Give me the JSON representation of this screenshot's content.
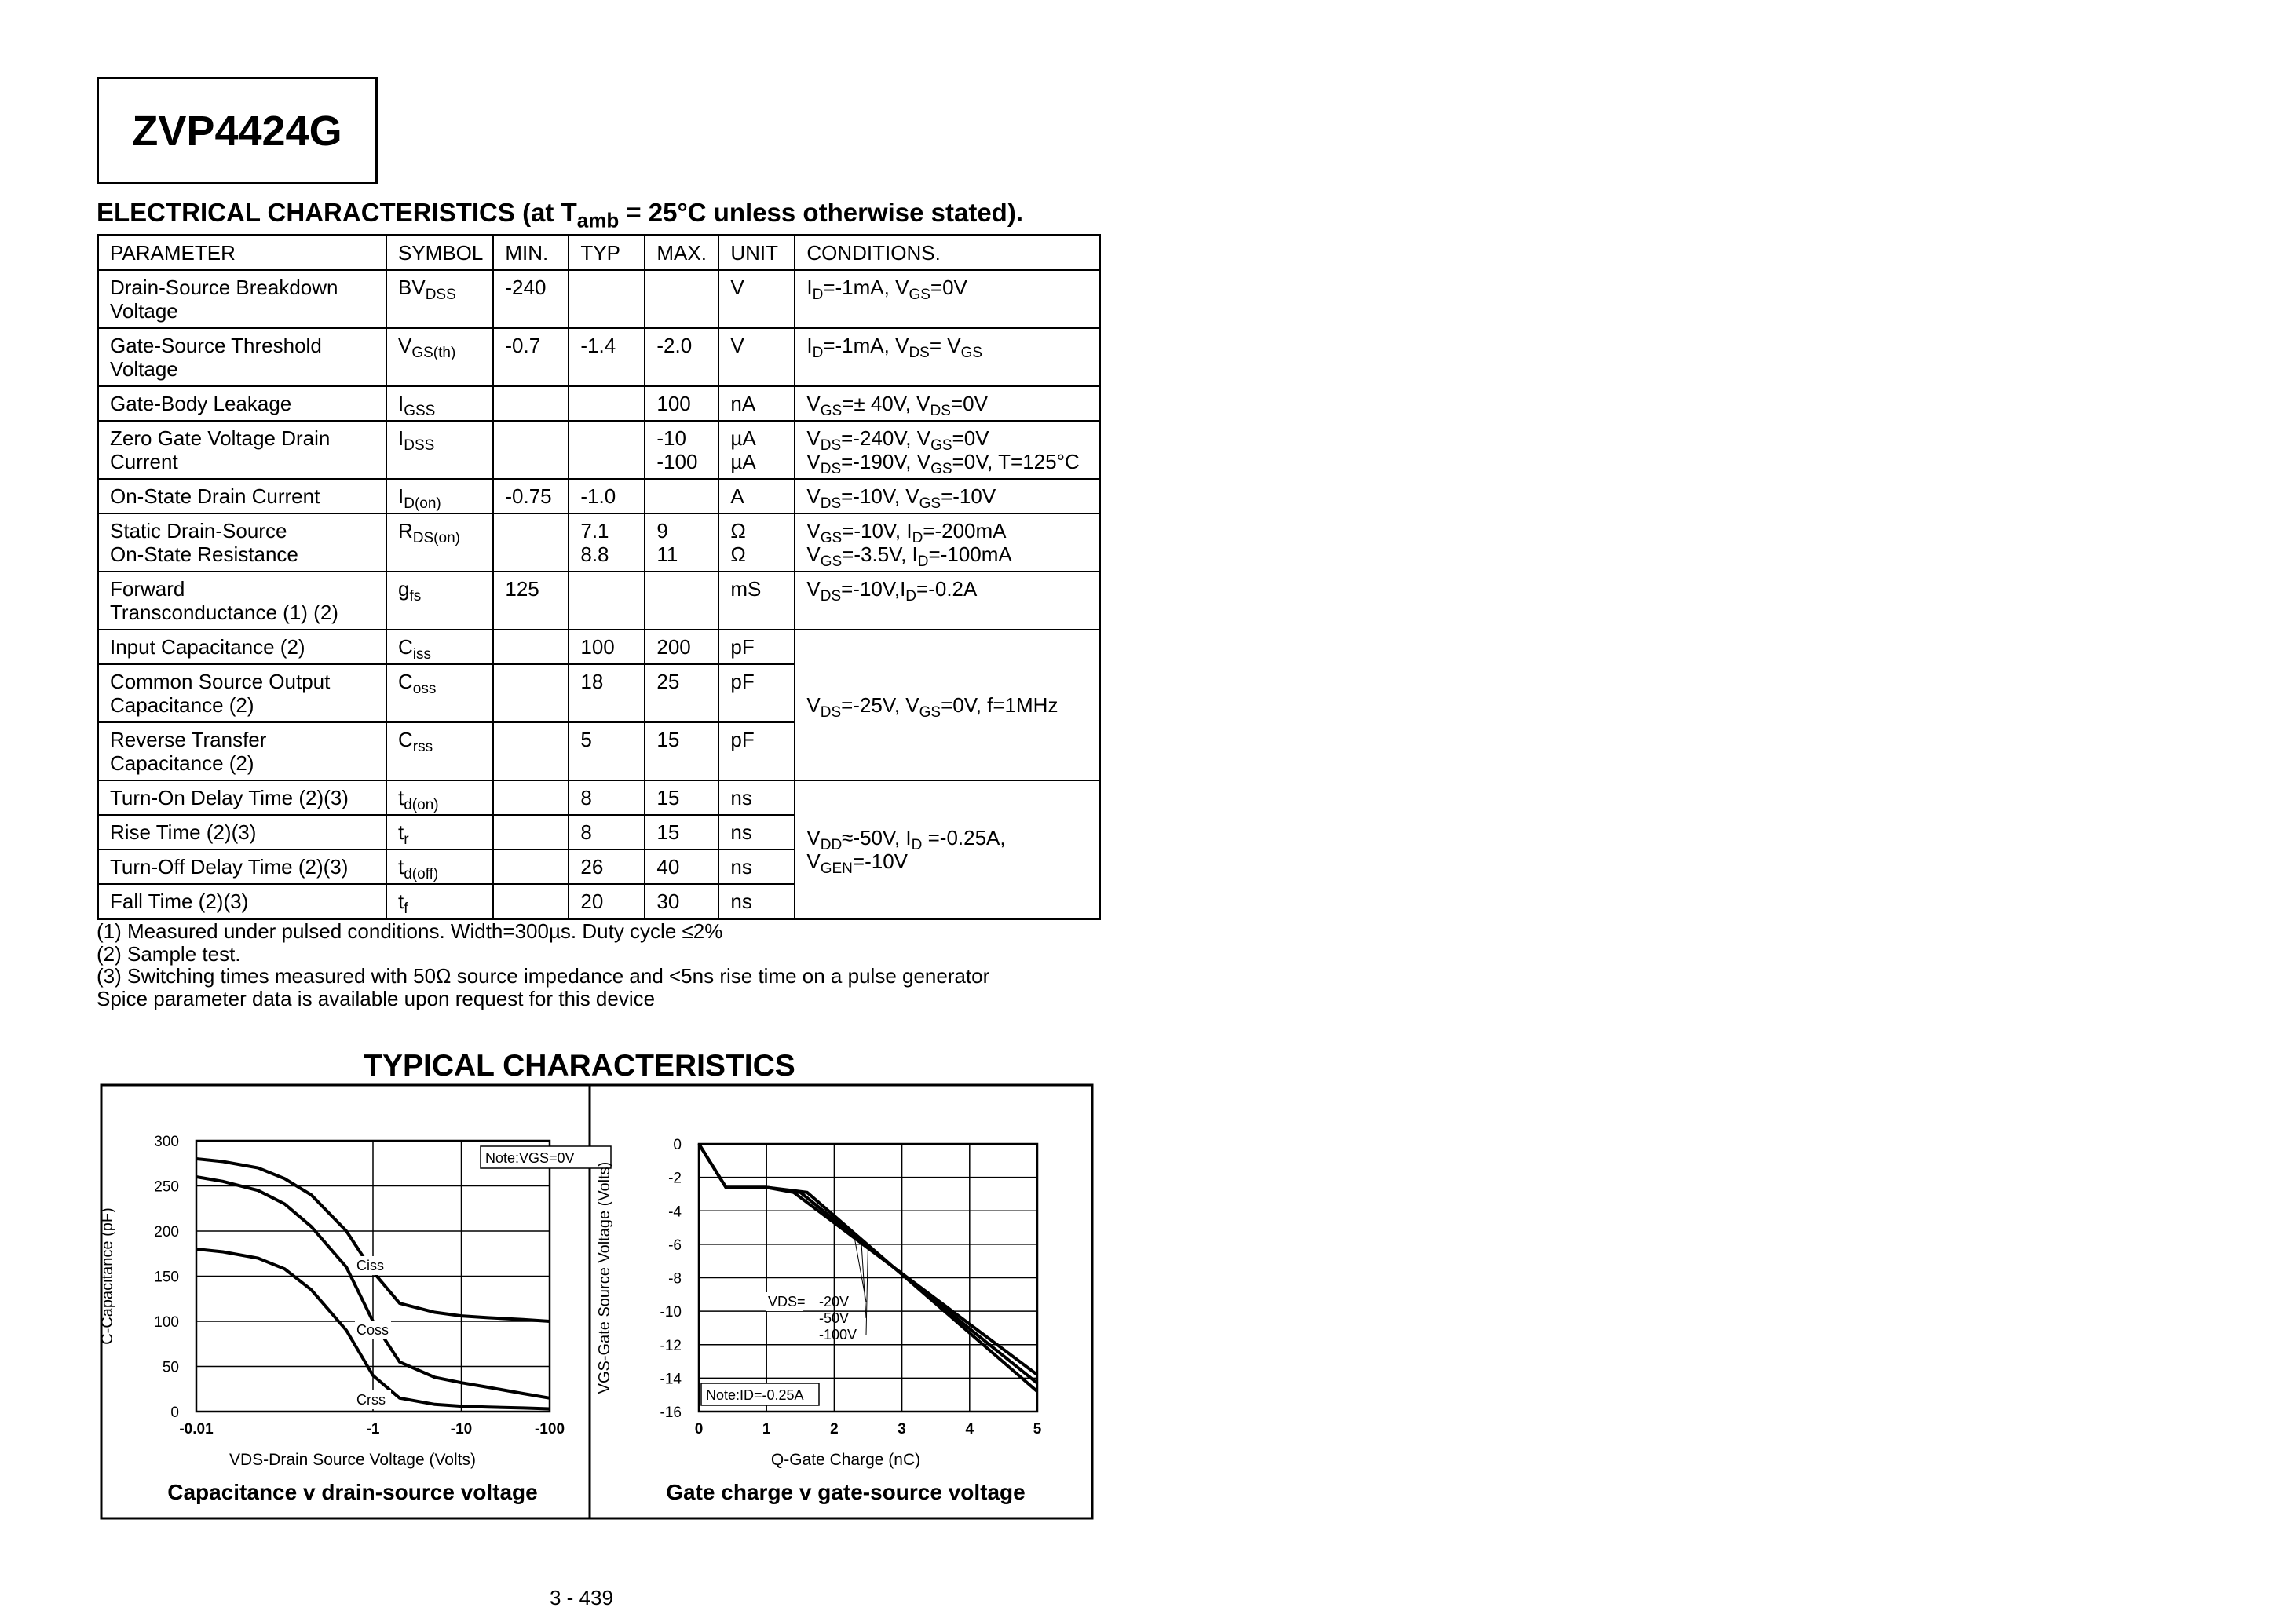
{
  "title": "ZVP4424G",
  "section_title": {
    "parts": [
      "ELECTRICAL CHARACTERISTICS (at T",
      {
        "sub": "amb"
      },
      " = 25°C unless otherwise stated)."
    ]
  },
  "table": {
    "header": [
      "PARAMETER",
      "SYMBOL",
      "MIN.",
      "TYP",
      "MAX.",
      "UNIT",
      "CONDITIONS."
    ],
    "rows": [
      [
        "Drain-Source  Breakdown Voltage",
        {
          "parts": [
            "BV",
            {
              "sub": "DSS"
            }
          ]
        },
        "-240",
        null,
        null,
        "V",
        {
          "parts": [
            "I",
            {
              "sub": "D"
            },
            "=-1mA, V",
            {
              "sub": "GS"
            },
            "=0V"
          ]
        }
      ],
      [
        "Gate-Source Threshold Voltage",
        {
          "parts": [
            "V",
            {
              "sub": "GS(th)"
            }
          ]
        },
        "-0.7",
        "-1.4",
        "-2.0",
        "V",
        {
          "parts": [
            "I",
            {
              "sub": "D"
            },
            "=-1mA, V",
            {
              "sub": "DS"
            },
            "= V",
            {
              "sub": "GS"
            }
          ]
        }
      ],
      [
        "Gate-Body Leakage",
        {
          "parts": [
            "I",
            {
              "sub": "GSS"
            }
          ]
        },
        null,
        null,
        "100",
        "nA",
        {
          "parts": [
            "V",
            {
              "sub": "GS"
            },
            "=± 40V, V",
            {
              "sub": "DS"
            },
            "=0V"
          ]
        }
      ],
      [
        "Zero Gate Voltage Drain Current",
        {
          "parts": [
            "I",
            {
              "sub": "DSS"
            }
          ]
        },
        null,
        null,
        {
          "lines": [
            "-10",
            "-100"
          ]
        },
        {
          "lines": [
            "µA",
            "µA"
          ]
        },
        {
          "lines": [
            {
              "parts": [
                "V",
                {
                  "sub": "DS"
                },
                "=-240V, V",
                {
                  "sub": "GS"
                },
                "=0V"
              ]
            },
            {
              "parts": [
                "V",
                {
                  "sub": "DS"
                },
                "=-190V, V",
                {
                  "sub": "GS"
                },
                "=0V, T=125°C"
              ]
            }
          ]
        }
      ],
      [
        "On-State Drain Current",
        {
          "parts": [
            "I",
            {
              "sub": "D(on)"
            }
          ]
        },
        "-0.75",
        "-1.0",
        null,
        "A",
        {
          "parts": [
            "V",
            {
              "sub": "DS"
            },
            "=-10V, V",
            {
              "sub": "GS"
            },
            "=-10V"
          ]
        }
      ],
      [
        {
          "lines": [
            "Static Drain-Source",
            "On-State Resistance"
          ]
        },
        {
          "parts": [
            "R",
            {
              "sub": "DS(on)"
            }
          ]
        },
        null,
        {
          "lines": [
            "7.1",
            "8.8"
          ]
        },
        {
          "lines": [
            "9",
            "11"
          ]
        },
        {
          "lines": [
            "Ω",
            "Ω"
          ]
        },
        {
          "lines": [
            {
              "parts": [
                "V",
                {
                  "sub": "GS"
                },
                "=-10V, I",
                {
                  "sub": "D"
                },
                "=-200mA"
              ]
            },
            {
              "parts": [
                "V",
                {
                  "sub": "GS"
                },
                "=-3.5V, I",
                {
                  "sub": "D"
                },
                "=-100mA"
              ]
            }
          ]
        }
      ],
      [
        {
          "lines": [
            "Forward",
            "Transconductance (1) (2)"
          ]
        },
        {
          "parts": [
            "g",
            {
              "sub": "fs"
            }
          ]
        },
        "125",
        null,
        null,
        "mS",
        {
          "parts": [
            "V",
            {
              "sub": "DS"
            },
            "=-10V,I",
            {
              "sub": "D"
            },
            "=-0.2A"
          ]
        }
      ],
      [
        "Input Capacitance (2)",
        {
          "parts": [
            "C",
            {
              "sub": "iss"
            }
          ]
        },
        null,
        "100",
        "200",
        "pF",
        {
          "parts": [
            "V",
            {
              "sub": "DS"
            },
            "=-25V, V",
            {
              "sub": "GS"
            },
            "=0V, f=1MHz"
          ]
        }
      ],
      [
        "Common Source Output Capacitance (2)",
        {
          "parts": [
            "C",
            {
              "sub": "oss"
            }
          ]
        },
        null,
        "18",
        "25",
        "pF"
      ],
      [
        "Reverse Transfer Capacitance (2)",
        {
          "parts": [
            "C",
            {
              "sub": "rss"
            }
          ]
        },
        null,
        "5",
        "15",
        "pF"
      ],
      [
        "Turn-On Delay Time (2)(3)",
        {
          "parts": [
            "t",
            {
              "sub": "d(on)"
            }
          ]
        },
        null,
        "8",
        "15",
        "ns",
        {
          "lines": [
            {
              "parts": [
                "V",
                {
                  "sub": "DD"
                },
                "≈-50V, I",
                {
                  "sub": "D"
                },
                " =-0.25A,"
              ]
            },
            {
              "parts": [
                "V",
                {
                  "sub": "GEN"
                },
                "=-10V"
              ]
            }
          ]
        }
      ],
      [
        "Rise Time (2)(3)",
        {
          "parts": [
            "t",
            {
              "sub": "r"
            }
          ]
        },
        null,
        "8",
        "15",
        "ns"
      ],
      [
        "Turn-Off Delay Time (2)(3)",
        {
          "parts": [
            "t",
            {
              "sub": "d(off)"
            }
          ]
        },
        null,
        "26",
        "40",
        "ns"
      ],
      [
        "Fall Time (2)(3)",
        {
          "parts": [
            "t",
            {
              "sub": "f"
            }
          ]
        },
        null,
        "20",
        "30",
        "ns"
      ]
    ]
  },
  "notes": [
    "(1) Measured under pulsed conditions. Width=300µs. Duty cycle ≤2%",
    "(2) Sample test.",
    "(3) Switching times measured with 50Ω source impedance and <5ns rise time on a pulse generator",
    "Spice parameter data is available upon request for this device"
  ],
  "typical_title": "TYPICAL CHARACTERISTICS",
  "chart_data": [
    {
      "type": "line",
      "title": "Capacitance v drain-source voltage",
      "x_label": "VDS-Drain Source Voltage (Volts)",
      "y_label": "C-Capacitance (pF)",
      "x_scale": "log",
      "xlim": [
        -0.01,
        -100
      ],
      "xticks": [
        -0.01,
        -1,
        -10,
        -100
      ],
      "ylim": [
        0,
        300
      ],
      "yticks": [
        0,
        50,
        100,
        150,
        200,
        250,
        300
      ],
      "grid": true,
      "note": "Note:VGS=0V",
      "annotations": [
        "Ciss",
        "Coss",
        "Crss"
      ],
      "x": [
        -0.01,
        -0.02,
        -0.05,
        -0.1,
        -0.2,
        -0.5,
        -1,
        -2,
        -5,
        -10,
        -20,
        -50,
        -100
      ],
      "series": [
        {
          "name": "Ciss",
          "color": "#000000",
          "values": [
            280,
            277,
            270,
            258,
            240,
            200,
            155,
            120,
            110,
            106,
            104,
            102,
            100
          ]
        },
        {
          "name": "Coss",
          "color": "#000000",
          "values": [
            260,
            255,
            245,
            230,
            205,
            160,
            100,
            55,
            38,
            32,
            27,
            20,
            15
          ]
        },
        {
          "name": "Crss",
          "color": "#000000",
          "values": [
            180,
            177,
            170,
            158,
            135,
            90,
            40,
            15,
            8,
            6,
            5,
            4,
            3
          ]
        }
      ]
    },
    {
      "type": "line",
      "title": "Gate charge v gate-source voltage",
      "x_label": "Q-Gate Charge (nC)",
      "y_label": "VGS-Gate Source Voltage (Volts)",
      "xlim": [
        0,
        5
      ],
      "xticks": [
        0,
        1,
        2,
        3,
        4,
        5
      ],
      "ylim": [
        -16,
        0
      ],
      "yticks": [
        0,
        -2,
        -4,
        -6,
        -8,
        -10,
        -12,
        -14,
        -16
      ],
      "grid": true,
      "note": "Note:ID=-0.25A",
      "annotations": [
        "VDS="
      ],
      "series": [
        {
          "name": "-20V",
          "color": "#000000",
          "x": [
            0,
            0.4,
            1.0,
            1.4,
            5
          ],
          "values": [
            0,
            -2.6,
            -2.6,
            -2.9,
            -13.8
          ]
        },
        {
          "name": "-50V",
          "color": "#000000",
          "x": [
            0,
            0.4,
            1.0,
            1.5,
            5
          ],
          "values": [
            0,
            -2.6,
            -2.6,
            -2.9,
            -14.3
          ]
        },
        {
          "name": "-100V",
          "color": "#000000",
          "x": [
            0,
            0.4,
            1.0,
            1.6,
            5
          ],
          "values": [
            0,
            -2.6,
            -2.6,
            -2.9,
            -14.8
          ]
        }
      ]
    }
  ],
  "page_number": "3 - 439"
}
